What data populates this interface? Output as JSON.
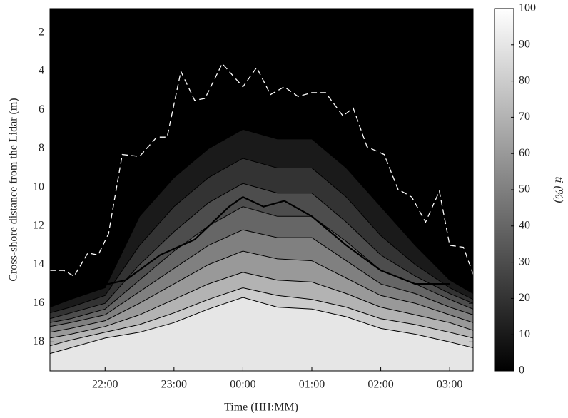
{
  "chart_data": {
    "type": "contour",
    "xlabel": "Time (HH:MM)",
    "ylabel": "Cross-shore distance from the Lidar (m)",
    "colorbar_label": "ti (%)",
    "colormap": "gray",
    "clim": [
      0,
      100
    ],
    "cticks": [
      0,
      10,
      20,
      30,
      40,
      50,
      60,
      70,
      80,
      90,
      100
    ],
    "xlim": [
      21.2,
      27.34
    ],
    "xticks": [
      {
        "value": 22,
        "label": "22:00"
      },
      {
        "value": 23,
        "label": "23:00"
      },
      {
        "value": 24,
        "label": "00:00"
      },
      {
        "value": 25,
        "label": "01:00"
      },
      {
        "value": 26,
        "label": "02:00"
      },
      {
        "value": 27,
        "label": "03:00"
      }
    ],
    "ylim": [
      0.75,
      19.5
    ],
    "y_reversed": true,
    "yticks": [
      2,
      4,
      6,
      8,
      10,
      12,
      14,
      16,
      18
    ],
    "x": [
      21.2,
      21.5,
      22,
      22.5,
      23,
      23.5,
      24,
      24.5,
      25,
      25.5,
      26,
      26.5,
      27,
      27.34
    ],
    "contours": [
      {
        "level": 10,
        "values": [
          16.2,
          15.8,
          15.2,
          11.5,
          9.5,
          8,
          7,
          7.5,
          7.5,
          9,
          11,
          13,
          14.8,
          15.5
        ]
      },
      {
        "level": 20,
        "values": [
          16.5,
          16.2,
          15.6,
          13,
          11,
          9.5,
          8.5,
          9,
          9,
          10.5,
          12.5,
          14,
          15.2,
          15.8
        ]
      },
      {
        "level": 30,
        "values": [
          16.8,
          16.5,
          16,
          14,
          12.3,
          10.8,
          9.8,
          10.3,
          10.3,
          11.8,
          13.5,
          14.6,
          15.5,
          16
        ]
      },
      {
        "level": 40,
        "values": [
          17,
          16.8,
          16.3,
          14.8,
          13.3,
          12,
          11,
          11.5,
          11.5,
          12.8,
          14.3,
          15,
          15.8,
          16.3
        ]
      },
      {
        "level": 50,
        "values": [
          17.2,
          17,
          16.6,
          15.4,
          14.2,
          13,
          12.2,
          12.6,
          12.6,
          13.8,
          15,
          15.5,
          16.2,
          16.6
        ]
      },
      {
        "level": 60,
        "values": [
          17.5,
          17.3,
          16.9,
          16,
          15,
          14,
          13.3,
          13.7,
          13.8,
          14.7,
          15.6,
          16,
          16.6,
          17
        ]
      },
      {
        "level": 70,
        "values": [
          17.8,
          17.6,
          17.2,
          16.6,
          15.8,
          15,
          14.4,
          14.8,
          14.9,
          15.5,
          16.2,
          16.6,
          17,
          17.4
        ]
      },
      {
        "level": 80,
        "values": [
          18.2,
          17.9,
          17.5,
          17.1,
          16.5,
          15.8,
          15.2,
          15.6,
          15.8,
          16.2,
          16.8,
          17.1,
          17.5,
          17.8
        ]
      },
      {
        "level": 90,
        "values": [
          18.6,
          18.3,
          17.8,
          17.5,
          17,
          16.3,
          15.7,
          16.2,
          16.3,
          16.7,
          17.3,
          17.6,
          18,
          18.3
        ]
      }
    ],
    "series": [
      {
        "color": "#ffffff",
        "dashed": true,
        "x": [
          21.2,
          21.4,
          21.55,
          21.75,
          21.9,
          22.05,
          22.25,
          22.5,
          22.75,
          22.9,
          23.1,
          23.3,
          23.45,
          23.7,
          24,
          24.2,
          24.4,
          24.6,
          24.8,
          25,
          25.2,
          25.45,
          25.6,
          25.8,
          26.05,
          26.25,
          26.45,
          26.65,
          26.85,
          27,
          27.2,
          27.34
        ],
        "values": [
          14.3,
          14.3,
          14.6,
          13.4,
          13.5,
          12.4,
          8.3,
          8.4,
          7.4,
          7.4,
          4,
          5.5,
          5.4,
          3.6,
          4.8,
          3.8,
          5.2,
          4.8,
          5.3,
          5.1,
          5.1,
          6.3,
          5.9,
          7.9,
          8.3,
          10.1,
          10.5,
          11.8,
          10.2,
          13,
          13.1,
          14.5
        ]
      },
      {
        "color": "#000000",
        "dashed": false,
        "x": [
          21.3,
          21.8,
          22.3,
          22.8,
          23.3,
          23.8,
          24,
          24.3,
          24.6,
          25,
          25.5,
          26,
          26.5,
          27
        ],
        "values": [
          15.8,
          15.2,
          14.8,
          13.5,
          12.7,
          11,
          10.5,
          11,
          10.7,
          11.5,
          13,
          14.3,
          15,
          15
        ]
      }
    ]
  }
}
